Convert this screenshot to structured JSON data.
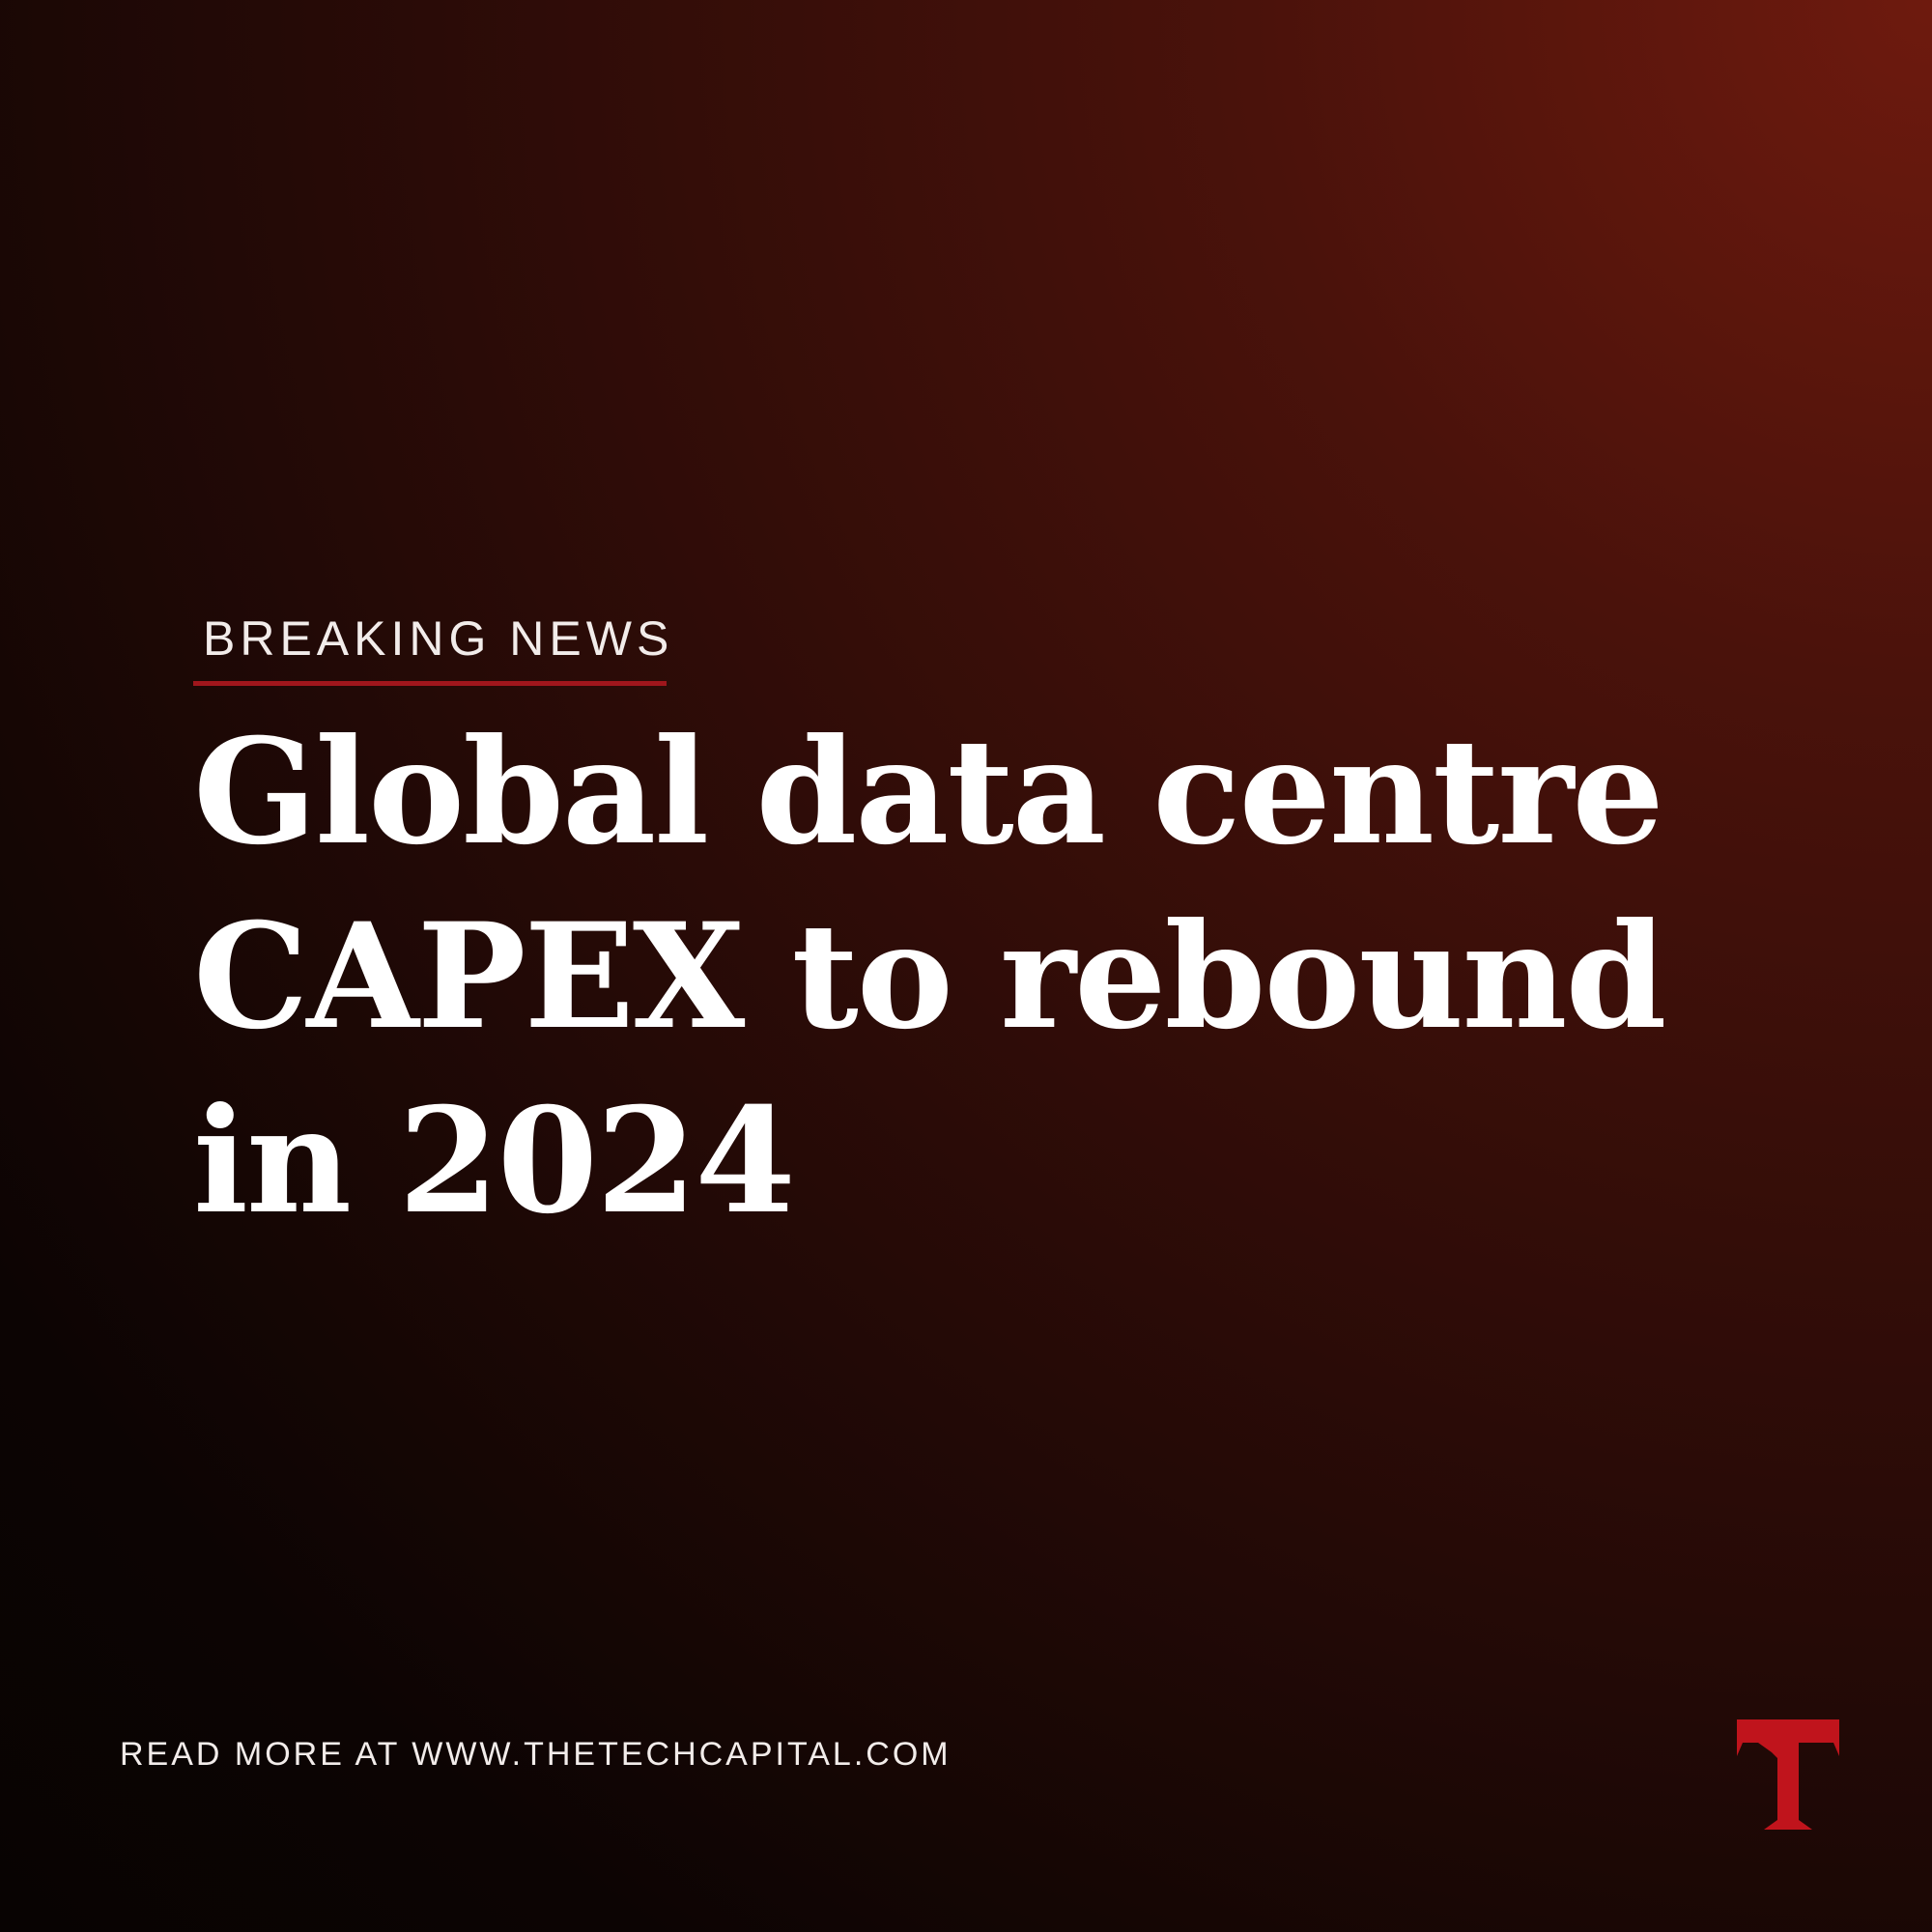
{
  "tag": "BREAKING NEWS",
  "headline": [
    "Global data centre",
    "CAPEX to rebound",
    "in 2024"
  ],
  "footer": "READ MORE AT WWW.THETECHCAPITAL.COM"
}
